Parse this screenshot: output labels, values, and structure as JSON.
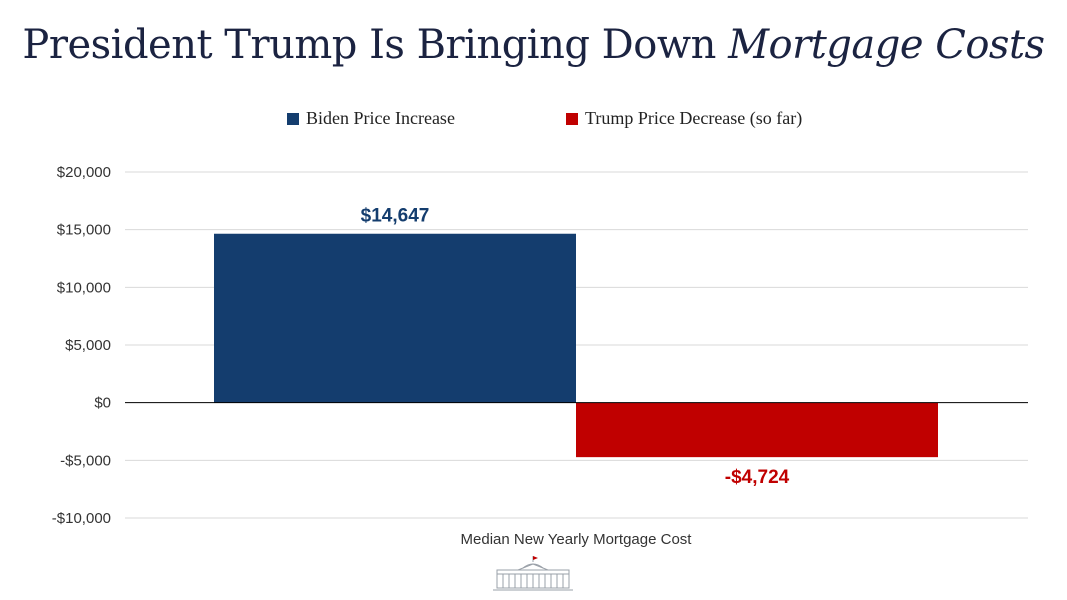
{
  "header": {
    "title_plain": "President Trump Is Bringing Down",
    "title_italic": "Mortgage Costs"
  },
  "colors": {
    "biden": "#143d6e",
    "trump": "#c00000",
    "grid": "#d9d9d9",
    "axis": "#000000"
  },
  "chart_data": {
    "type": "bar",
    "title": "President Trump Is Bringing Down Mortgage Costs",
    "categories": [
      "Median New Yearly Mortgage Cost"
    ],
    "xlabel": "Median New Yearly Mortgage Cost",
    "ylabel": "",
    "ylim": [
      -10000,
      20000
    ],
    "yticks": [
      20000,
      15000,
      10000,
      5000,
      0,
      -5000,
      -10000
    ],
    "ytick_labels": [
      "$20,000",
      "$15,000",
      "$10,000",
      "$5,000",
      "$0",
      "-$5,000",
      "-$10,000"
    ],
    "grid": true,
    "legend_position": "top-center",
    "series": [
      {
        "name": "Biden Price Increase",
        "values": [
          14647
        ],
        "label": "$14,647"
      },
      {
        "name": "Trump Price Decrease (so far)",
        "values": [
          -4724
        ],
        "label": "-$4,724"
      }
    ]
  }
}
